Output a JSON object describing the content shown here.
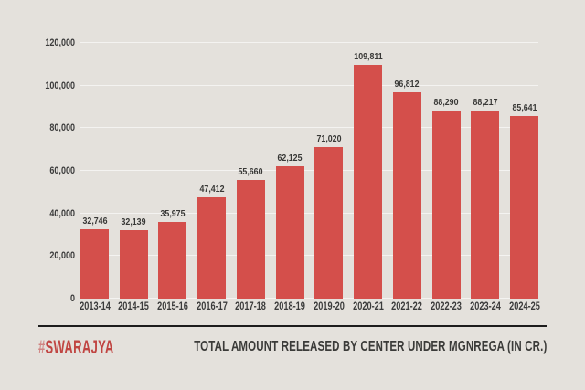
{
  "chart_data": {
    "type": "bar",
    "categories": [
      "2013-14",
      "2014-15",
      "2015-16",
      "2016-17",
      "2017-18",
      "2018-19",
      "2019-20",
      "2020-21",
      "2021-22",
      "2022-23",
      "2023-24",
      "2024-25"
    ],
    "values": [
      32746,
      32139,
      35975,
      47412,
      55660,
      62125,
      71020,
      109811,
      96812,
      88290,
      88217,
      85641
    ],
    "value_labels": [
      "32,746",
      "32,139",
      "35,975",
      "47,412",
      "55,660",
      "62,125",
      "71,020",
      "109,811",
      "96,812",
      "88,290",
      "88,217",
      "85,641"
    ],
    "title": "TOTAL AMOUNT RELEASED BY CENTER UNDER MGNREGA (IN CR.)",
    "xlabel": "",
    "ylabel": "",
    "ylim": [
      0,
      120000
    ],
    "ytick_labels": [
      "0",
      "20,000",
      "40,000",
      "60,000",
      "80,000",
      "100,000",
      "120,000"
    ],
    "grid": true,
    "legend": false
  },
  "branding": {
    "logo_hash": "#",
    "logo_name": "SWARAJYA"
  },
  "colors": {
    "background": "#e4e1dc",
    "bar": "#d44f4b",
    "text": "#3b3b3b",
    "divider": "#1c1c1c",
    "logo_red": "#c04542",
    "logo_hash": "#d08482",
    "gridline": "rgba(255,255,255,0.6)"
  }
}
